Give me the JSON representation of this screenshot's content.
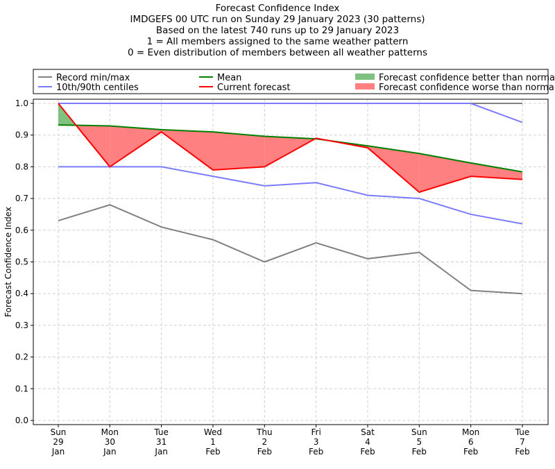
{
  "chart_data": {
    "type": "line",
    "title_lines": [
      "Forecast Confidence Index",
      "IMDGEFS 00 UTC run on Sunday 29 January 2023 (30 patterns)",
      "Based on the latest 740 runs up to 29 January 2023",
      "1 = All members assigned to the same weather pattern",
      "0 = Even distribution of members between all weather patterns"
    ],
    "ylabel": "Forecast Confidence Index",
    "ylim": [
      0,
      1
    ],
    "yticks": [
      "0.0",
      "0.1",
      "0.2",
      "0.3",
      "0.4",
      "0.5",
      "0.6",
      "0.7",
      "0.8",
      "0.9",
      "1.0"
    ],
    "categories": [
      [
        "Sun",
        "29",
        "Jan"
      ],
      [
        "Mon",
        "30",
        "Jan"
      ],
      [
        "Tue",
        "31",
        "Jan"
      ],
      [
        "Wed",
        "1",
        "Feb"
      ],
      [
        "Thu",
        "2",
        "Feb"
      ],
      [
        "Fri",
        "3",
        "Feb"
      ],
      [
        "Sat",
        "4",
        "Feb"
      ],
      [
        "Sun",
        "5",
        "Feb"
      ],
      [
        "Mon",
        "6",
        "Feb"
      ],
      [
        "Tue",
        "7",
        "Feb"
      ]
    ],
    "grid": true,
    "legend_position": "top",
    "series": {
      "record_max": {
        "values": [
          1,
          1,
          1,
          1,
          1,
          1,
          1,
          1,
          1,
          1
        ],
        "color": "#808080"
      },
      "record_min": {
        "values": [
          0.63,
          0.68,
          0.61,
          0.57,
          0.5,
          0.56,
          0.51,
          0.53,
          0.41,
          0.4
        ],
        "color": "#808080"
      },
      "p90": {
        "values": [
          1,
          1,
          1,
          1,
          1,
          1,
          1,
          1,
          1,
          0.94
        ],
        "color": "#7b7bff"
      },
      "p10": {
        "values": [
          0.8,
          0.8,
          0.8,
          0.77,
          0.74,
          0.75,
          0.71,
          0.7,
          0.65,
          0.62
        ],
        "color": "#7b7bff"
      },
      "mean": {
        "values": [
          0.932,
          0.929,
          0.917,
          0.91,
          0.896,
          0.888,
          0.866,
          0.842,
          0.812,
          0.784
        ],
        "color": "#008000"
      },
      "current": {
        "values": [
          1.0,
          0.8,
          0.91,
          0.79,
          0.8,
          0.89,
          0.86,
          0.72,
          0.77,
          0.76
        ],
        "color": "#ff0000"
      }
    },
    "fill_better_color": "#80c080",
    "fill_worse_color": "#ff8080",
    "legend": [
      {
        "label": "Record min/max",
        "color": "#808080",
        "kind": "line"
      },
      {
        "label": "Mean",
        "color": "#008000",
        "kind": "line"
      },
      {
        "label": "Forecast confidence better than normal",
        "color": "#80c080",
        "kind": "patch"
      },
      {
        "label": "10th/90th centiles",
        "color": "#7b7bff",
        "kind": "line"
      },
      {
        "label": "Current forecast",
        "color": "#ff0000",
        "kind": "line"
      },
      {
        "label": "Forecast confidence worse than normal",
        "color": "#ff8080",
        "kind": "patch"
      }
    ]
  }
}
